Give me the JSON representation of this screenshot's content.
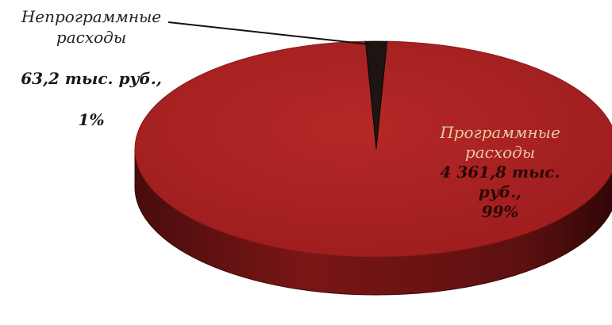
{
  "chart_data": {
    "type": "pie",
    "style": "3d",
    "categories": [
      "Непрограммные расходы",
      "Программные расходы"
    ],
    "values": [
      63.2,
      4361.8
    ],
    "percentages": [
      1,
      99
    ],
    "colors": [
      "#1e1412",
      "#b02424"
    ],
    "side_colors": [
      "#120a09",
      "#6e1414"
    ],
    "labels": [
      {
        "name_line1": "Непрограммные",
        "name_line2": "расходы",
        "value_line1": "63,2 тыс. руб.,",
        "value_line2": "1%"
      },
      {
        "name_line1": "Программные",
        "name_line2": "расходы",
        "value_line1": "4 361,8 тыс.",
        "value_line2": "руб.,",
        "value_line3": "99%"
      }
    ],
    "legend": "none"
  }
}
